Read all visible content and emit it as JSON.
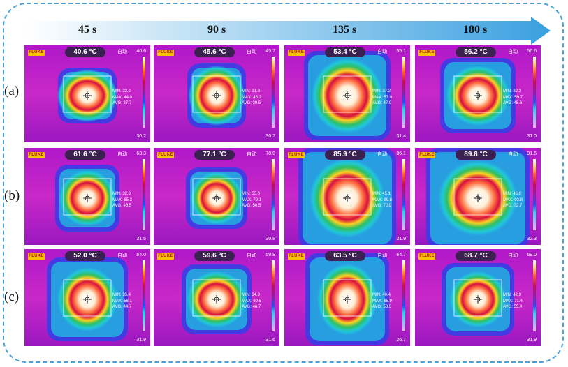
{
  "times": [
    "45 s",
    "90 s",
    "135 s",
    "180 s"
  ],
  "row_labels": [
    "(a)",
    "(b)",
    "(c)"
  ],
  "camera": {
    "brand": "FLUKE",
    "mode": "自动"
  },
  "colors": {
    "frame": "#4aa3d8",
    "background_magenta": "#c020c8",
    "hot": "#ffffff",
    "cold": "#20d8e8"
  },
  "rows": [
    [
      {
        "temp": "40.6 °C",
        "scale_max": "40.6",
        "scale_min": "30.2",
        "min": "MIN: 32.2",
        "max": "MAX: 44.0",
        "avg": "AVG: 37.7"
      },
      {
        "temp": "45.6 °C",
        "scale_max": "45.7",
        "scale_min": "30.7",
        "min": "MIN: 31.8",
        "max": "MAX: 46.2",
        "avg": "AVG: 39.5"
      },
      {
        "temp": "53.4 °C",
        "scale_max": "55.1",
        "scale_min": "31.4",
        "min": "MIN: 37.2",
        "max": "MAX: 57.0",
        "avg": "AVG: 47.9"
      },
      {
        "temp": "56.2 °C",
        "scale_max": "56.6",
        "scale_min": "31.0",
        "min": "MIN: 32.3",
        "max": "MAX: 59.7",
        "avg": "AVG: 45.6"
      }
    ],
    [
      {
        "temp": "61.6 °C",
        "scale_max": "63.3",
        "scale_min": "31.5",
        "min": "MIN: 32.3",
        "max": "MAX: 65.2",
        "avg": "AVG: 46.5"
      },
      {
        "temp": "77.1 °C",
        "scale_max": "78.0",
        "scale_min": "30.8",
        "min": "MIN: 33.0",
        "max": "MAX: 79.1",
        "avg": "AVG: 50.5"
      },
      {
        "temp": "85.9 °C",
        "scale_max": "86.1",
        "scale_min": "31.9",
        "min": "MIN: 45.1",
        "max": "MAX: 89.8",
        "avg": "AVG: 70.9"
      },
      {
        "temp": "89.8 °C",
        "scale_max": "91.5",
        "scale_min": "32.3",
        "min": "MIN: 46.2",
        "max": "MAX: 93.8",
        "avg": "AVG: 72.7"
      }
    ],
    [
      {
        "temp": "52.0 °C",
        "scale_max": "54.0",
        "scale_min": "31.9",
        "min": "MIN: 35.4",
        "max": "MAX: 56.1",
        "avg": "AVG: 44.7"
      },
      {
        "temp": "59.6 °C",
        "scale_max": "59.8",
        "scale_min": "31.6",
        "min": "MIN: 34.9",
        "max": "MAX: 60.5",
        "avg": "AVG: 46.7"
      },
      {
        "temp": "63.5 °C",
        "scale_max": "64.7",
        "scale_min": "26.7",
        "min": "MIN: 40.4",
        "max": "MAX: 65.9",
        "avg": "AVG: 53.3"
      },
      {
        "temp": "68.7 °C",
        "scale_max": "69.0",
        "scale_min": "31.9",
        "min": "MIN: 42.9",
        "max": "MAX: 71.4",
        "avg": "AVG: 55.4"
      }
    ]
  ]
}
